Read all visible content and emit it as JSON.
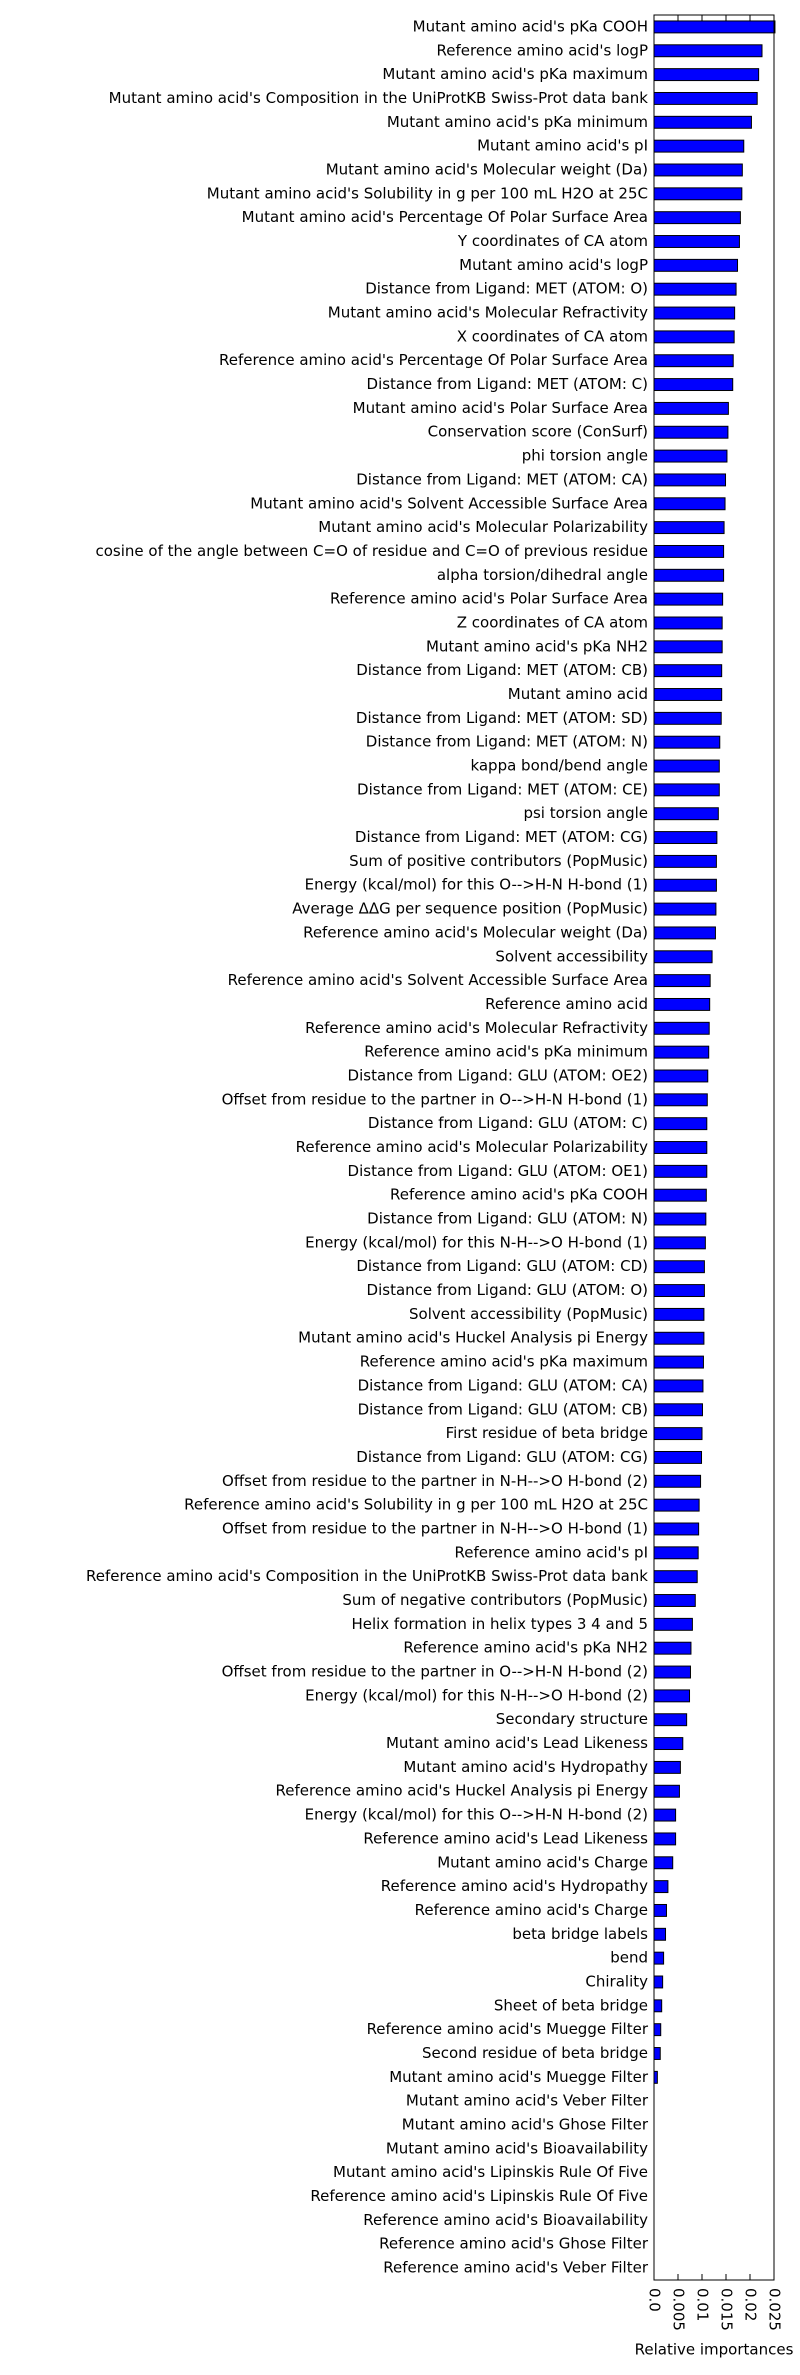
{
  "chart_data": {
    "type": "barh",
    "xlabel": "Relative importances",
    "color": "#0000ff",
    "categories": [
      "Mutant amino acid's pKa COOH",
      "Reference amino acid's logP",
      "Mutant amino acid's pKa maximum",
      "Mutant amino acid's Composition in the UniProtKB Swiss-Prot data bank",
      "Mutant amino acid's pKa minimum",
      "Mutant amino acid's pI",
      "Mutant amino acid's Molecular weight (Da)",
      "Mutant amino acid's Solubility in g per 100 mL H2O at 25C",
      "Mutant amino acid's Percentage Of Polar Surface Area",
      "Y coordinates of CA atom",
      "Mutant amino acid's logP",
      "Distance from Ligand: MET (ATOM: O)",
      "Mutant amino acid's Molecular Refractivity",
      "X coordinates of CA atom",
      "Reference amino acid's Percentage Of Polar Surface Area",
      "Distance from Ligand: MET (ATOM: C)",
      "Mutant amino acid's Polar Surface Area",
      "Conservation score (ConSurf)",
      "phi torsion angle",
      "Distance from Ligand: MET (ATOM: CA)",
      "Mutant amino acid's Solvent Accessible Surface Area",
      "Mutant amino acid's Molecular Polarizability",
      "cosine of the angle between C=O of residue and C=O of previous residue",
      "alpha torsion/dihedral angle",
      "Reference amino acid's Polar Surface Area",
      "Z coordinates of CA atom",
      "Mutant amino acid's pKa NH2",
      "Distance from Ligand: MET (ATOM: CB)",
      "Mutant amino acid",
      "Distance from Ligand: MET (ATOM: SD)",
      "Distance from Ligand: MET (ATOM: N)",
      "kappa bond/bend angle",
      "Distance from Ligand: MET (ATOM: CE)",
      "psi torsion angle",
      "Distance from Ligand: MET (ATOM: CG)",
      "Sum of positive contributors (PopMusic)",
      "Energy (kcal/mol) for this O-->H-N H-bond (1)",
      "Average ΔΔG per sequence position (PopMusic)",
      "Reference amino acid's Molecular weight (Da)",
      "Solvent accessibility",
      "Reference amino acid's Solvent Accessible Surface Area",
      "Reference amino acid",
      "Reference amino acid's Molecular Refractivity",
      "Reference amino acid's pKa minimum",
      "Distance from Ligand: GLU (ATOM: OE2)",
      "Offset from residue to the partner in O-->H-N H-bond (1)",
      "Distance from Ligand: GLU (ATOM: C)",
      "Reference amino acid's Molecular Polarizability",
      "Distance from Ligand: GLU (ATOM: OE1)",
      "Reference amino acid's pKa COOH",
      "Distance from Ligand: GLU (ATOM: N)",
      "Energy (kcal/mol) for this N-H-->O H-bond (1)",
      "Distance from Ligand: GLU (ATOM: CD)",
      "Distance from Ligand: GLU (ATOM: O)",
      "Solvent accessibility (PopMusic)",
      "Mutant amino acid's Huckel Analysis pi Energy",
      "Reference amino acid's pKa maximum",
      "Distance from Ligand: GLU (ATOM: CA)",
      "Distance from Ligand: GLU (ATOM: CB)",
      "First residue of beta bridge",
      "Distance from Ligand: GLU (ATOM: CG)",
      "Offset from residue to the partner in N-H-->O H-bond (2)",
      "Reference amino acid's Solubility in g per 100 mL H2O at 25C",
      "Offset from residue to the partner in N-H-->O H-bond (1)",
      "Reference amino acid's pI",
      "Reference amino acid's Composition in the UniProtKB Swiss-Prot data bank",
      "Sum of negative contributors (PopMusic)",
      "Helix formation in helix types 3 4 and 5",
      "Reference amino acid's pKa NH2",
      "Offset from residue to the partner in O-->H-N H-bond (2)",
      "Energy (kcal/mol) for this N-H-->O H-bond (2)",
      "Secondary structure",
      "Mutant amino acid's Lead Likeness",
      "Mutant amino acid's Hydropathy",
      "Reference amino acid's Huckel Analysis pi Energy",
      "Energy (kcal/mol) for this O-->H-N H-bond (2)",
      "Reference amino acid's Lead Likeness",
      "Mutant amino acid's Charge",
      "Reference amino acid's Hydropathy",
      "Reference amino acid's Charge",
      "beta bridge labels",
      "bend",
      "Chirality",
      "Sheet of beta bridge",
      "Reference amino acid's Muegge Filter",
      "Second residue of beta bridge",
      "Mutant amino acid's Muegge Filter",
      "Mutant amino acid's Veber Filter",
      "Mutant amino acid's Ghose Filter",
      "Mutant amino acid's Bioavailability",
      "Mutant amino acid's Lipinskis Rule Of Five",
      "Reference amino acid's Lipinskis Rule Of Five",
      "Reference amino acid's Bioavailability",
      "Reference amino acid's Ghose Filter",
      "Reference amino acid's Veber Filter"
    ],
    "values": [
      0.0252,
      0.0225,
      0.0218,
      0.0215,
      0.0203,
      0.0187,
      0.0184,
      0.0183,
      0.018,
      0.0178,
      0.0174,
      0.0171,
      0.0168,
      0.0167,
      0.0165,
      0.0164,
      0.0155,
      0.0154,
      0.0152,
      0.0149,
      0.0148,
      0.0146,
      0.0145,
      0.0145,
      0.0143,
      0.0142,
      0.0142,
      0.0141,
      0.0141,
      0.014,
      0.0137,
      0.0136,
      0.0136,
      0.0134,
      0.0131,
      0.013,
      0.013,
      0.0129,
      0.0128,
      0.0121,
      0.0117,
      0.0116,
      0.0115,
      0.0114,
      0.0112,
      0.0111,
      0.011,
      0.011,
      0.011,
      0.0109,
      0.0108,
      0.0107,
      0.0105,
      0.0105,
      0.0104,
      0.0104,
      0.0103,
      0.0102,
      0.0101,
      0.01,
      0.0099,
      0.0097,
      0.0094,
      0.0093,
      0.0092,
      0.009,
      0.0086,
      0.008,
      0.0077,
      0.0076,
      0.0074,
      0.0068,
      0.006,
      0.0055,
      0.0053,
      0.0045,
      0.0045,
      0.0039,
      0.0029,
      0.0026,
      0.0024,
      0.002,
      0.0018,
      0.0016,
      0.0014,
      0.0013,
      0.0007,
      0,
      0,
      0,
      0,
      0,
      0,
      0,
      0
    ],
    "xlim": [
      0,
      0.025
    ],
    "xticks": [
      {
        "value": 0,
        "label": "0.0"
      },
      0.005,
      0.01,
      0.015,
      0.02,
      0.025
    ]
  }
}
